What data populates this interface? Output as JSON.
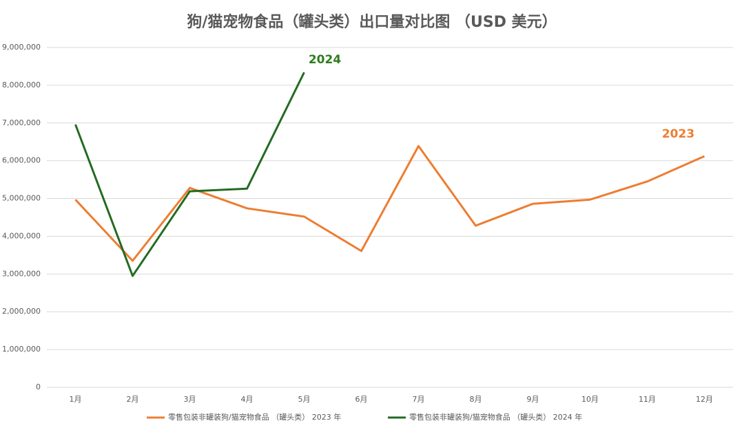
{
  "chart_data": {
    "type": "line",
    "title": "狗/猫宠物食品（罐头类）出口量对比图 （USD 美元）",
    "categories": [
      "1月",
      "2月",
      "3月",
      "4月",
      "5月",
      "6月",
      "7月",
      "8月",
      "9月",
      "10月",
      "11月",
      "12月"
    ],
    "series": [
      {
        "name": "零售包装非罐装狗/猫宠物食品 （罐头类） 2023 年",
        "color": "#ed7d31",
        "values": [
          4970000,
          3350000,
          5280000,
          4740000,
          4520000,
          3610000,
          6390000,
          4280000,
          4860000,
          4970000,
          5450000,
          6120000
        ]
      },
      {
        "name": "零售包装非罐装狗/猫宠物食品 （罐头类） 2024 年",
        "color": "#236b22",
        "values": [
          6960000,
          2950000,
          5190000,
          5260000,
          8340000,
          null,
          null,
          null,
          null,
          null,
          null,
          null
        ]
      }
    ],
    "annotations": [
      {
        "text": "2023",
        "color": "#ed7d31"
      },
      {
        "text": "2024",
        "color": "#2e7d1e"
      }
    ],
    "ylim": [
      0,
      9000000
    ],
    "yticks": [
      0,
      {
        "value": 1000000,
        "label": "1,000,000"
      },
      {
        "value": 2000000,
        "label": "2,000,000"
      },
      {
        "value": 3000000,
        "label": "3,000,000"
      },
      {
        "value": 4000000,
        "label": "4,000,000"
      },
      {
        "value": 5000000,
        "label": "5,000,000"
      },
      {
        "value": 6000000,
        "label": "6,000,000"
      },
      {
        "value": 7000000,
        "label": "7,000,000"
      },
      {
        "value": 8000000,
        "label": "8,000,000"
      },
      {
        "value": 9000000,
        "label": "9,000,000"
      }
    ],
    "grid": true,
    "legend": "bottom"
  }
}
